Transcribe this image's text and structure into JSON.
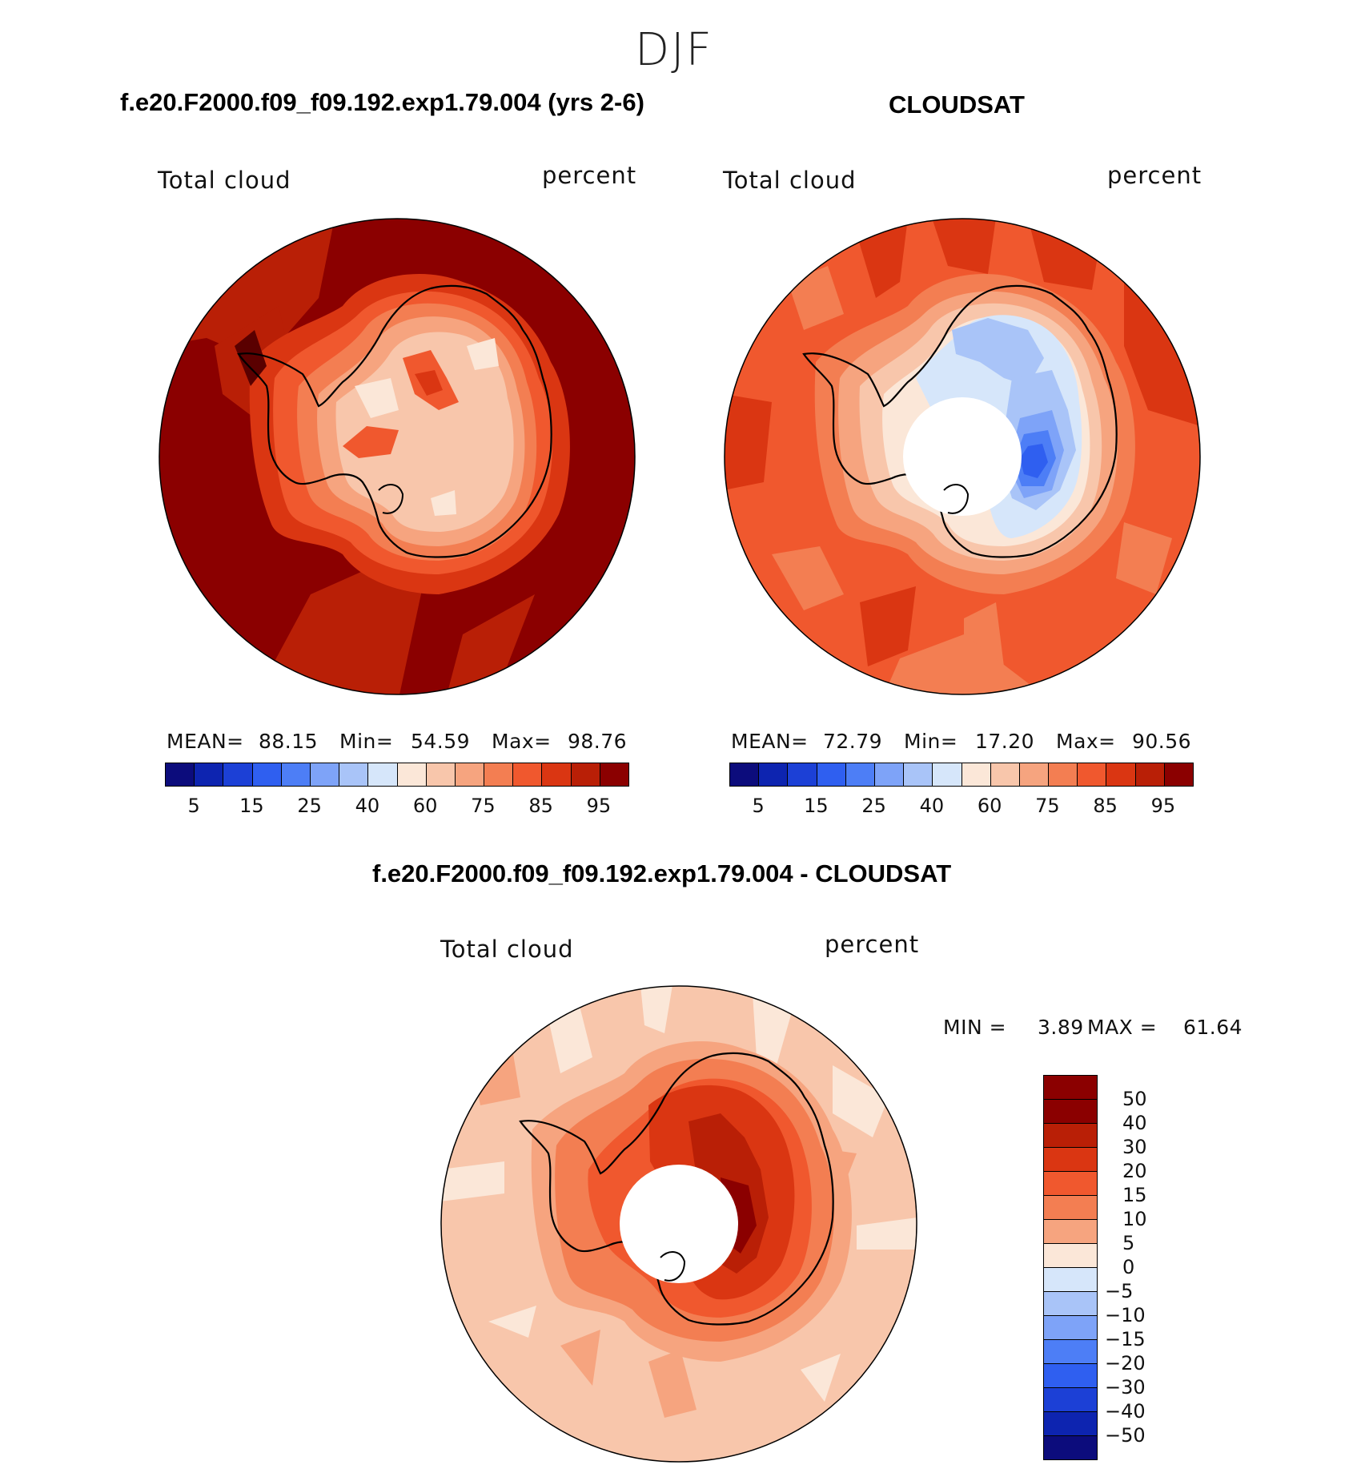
{
  "season": "DJF",
  "panels": [
    {
      "title": "f.e20.F2000.f09_f09.192.exp1.79.004 (yrs 2-6)",
      "variable": "Total cloud",
      "units": "percent",
      "stats": {
        "mean_label": "MEAN=",
        "mean": "88.15",
        "min_label": "Min=",
        "min": "54.59",
        "max_label": "Max=",
        "max": "98.76"
      }
    },
    {
      "title": "CLOUDSAT",
      "variable": "Total cloud",
      "units": "percent",
      "stats": {
        "mean_label": "MEAN=",
        "mean": "72.79",
        "min_label": "Min=",
        "min": "17.20",
        "max_label": "Max=",
        "max": "90.56"
      }
    },
    {
      "title": "f.e20.F2000.f09_f09.192.exp1.79.004 - CLOUDSAT",
      "variable": "Total cloud",
      "units": "percent",
      "stats": {
        "min_label": "MIN =",
        "min": "3.89",
        "max_label": "MAX =",
        "max": "61.64"
      }
    }
  ],
  "abs_colorbar": {
    "colors": [
      "#0c0c7c",
      "#0d24b0",
      "#1c40d6",
      "#2f5ff0",
      "#4d7ef6",
      "#7ea3f8",
      "#a9c4f8",
      "#d6e6fa",
      "#fbe7d8",
      "#f8c6ab",
      "#f6a47f",
      "#f37e52",
      "#f0582e",
      "#da3612",
      "#b91f06",
      "#8b0000"
    ],
    "tick_labels": [
      "5",
      "15",
      "25",
      "40",
      "60",
      "75",
      "85",
      "95"
    ]
  },
  "diff_colorbar": {
    "colors": [
      "#8b0000",
      "#b91f06",
      "#da3612",
      "#f0582e",
      "#f37e52",
      "#f6a47f",
      "#fbe7d8",
      "#d6e6fa",
      "#a9c4f8",
      "#7ea3f8",
      "#4d7ef6",
      "#2f5ff0",
      "#1c40d6",
      "#0d24b0",
      "#0c0c7c"
    ],
    "tick_labels": [
      "50",
      "40",
      "30",
      "20",
      "15",
      "10",
      "5",
      "0",
      "−5",
      "−10",
      "−15",
      "−20",
      "−30",
      "−40",
      "−50"
    ]
  }
}
